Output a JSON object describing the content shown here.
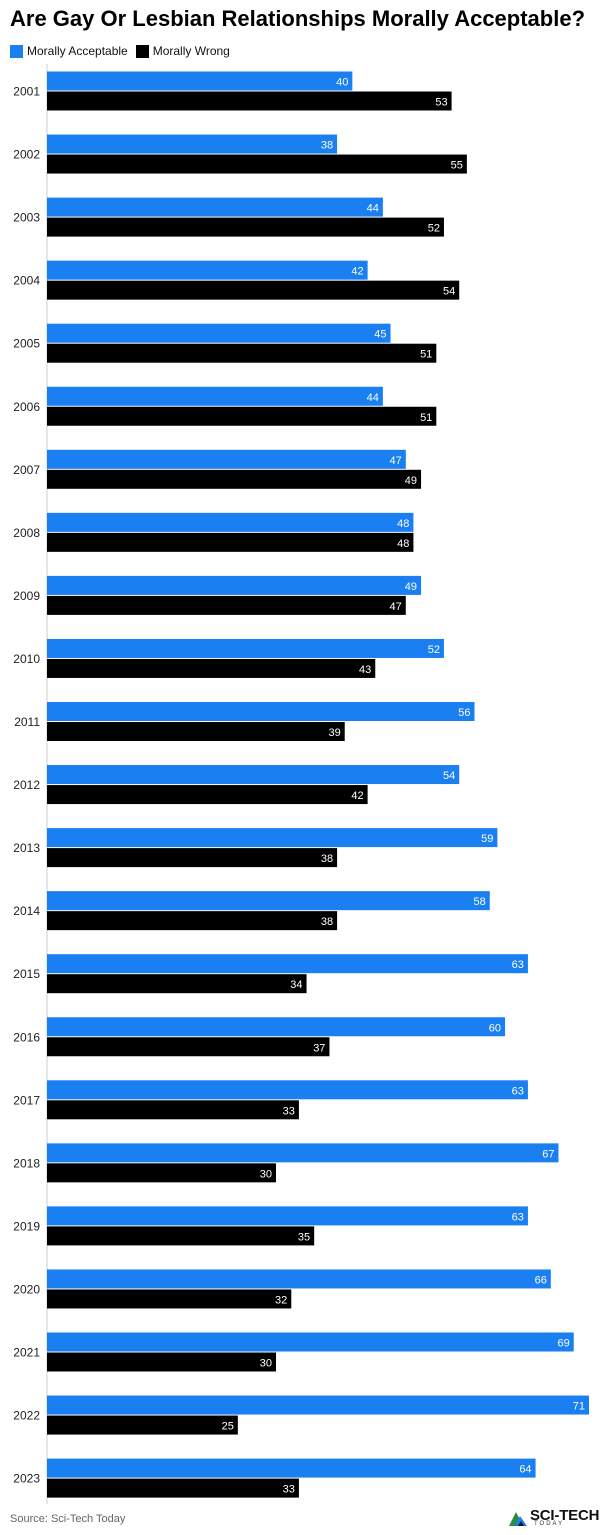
{
  "title": "Are Gay Or Lesbian Relationships Morally Acceptable?",
  "source": "Source: Sci-Tech Today",
  "logo": {
    "main": "SCI-TECH",
    "sub": "TODAY"
  },
  "colors": {
    "acceptable": "#1a7ff0",
    "wrong": "#000000"
  },
  "chart_data": {
    "type": "bar",
    "orientation": "horizontal",
    "categories": [
      "2001",
      "2002",
      "2003",
      "2004",
      "2005",
      "2006",
      "2007",
      "2008",
      "2009",
      "2010",
      "2011",
      "2012",
      "2013",
      "2014",
      "2015",
      "2016",
      "2017",
      "2018",
      "2019",
      "2020",
      "2021",
      "2022",
      "2023"
    ],
    "series": [
      {
        "name": "Morally Acceptable",
        "color": "#1a7ff0",
        "values": [
          40,
          38,
          44,
          42,
          45,
          44,
          47,
          48,
          49,
          52,
          56,
          54,
          59,
          58,
          63,
          60,
          63,
          67,
          63,
          66,
          69,
          71,
          64
        ]
      },
      {
        "name": "Morally Wrong",
        "color": "#000000",
        "values": [
          53,
          55,
          52,
          54,
          51,
          51,
          49,
          48,
          47,
          43,
          39,
          42,
          38,
          38,
          34,
          37,
          33,
          30,
          35,
          32,
          30,
          25,
          33
        ]
      }
    ],
    "xlim": [
      0,
      71
    ],
    "legend": "top-left",
    "grid": false
  }
}
